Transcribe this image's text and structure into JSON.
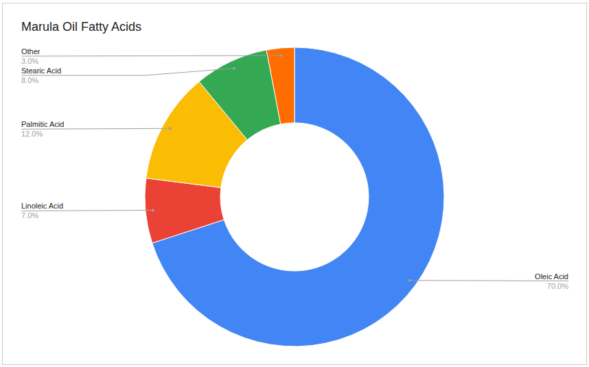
{
  "chart_data": {
    "type": "donut",
    "title": "Marula Oil Fatty Acids",
    "categories": [
      "Oleic Acid",
      "Linoleic Acid",
      "Palmitic Acid",
      "Stearic Acid",
      "Other"
    ],
    "values": [
      70,
      7,
      12,
      8,
      3
    ],
    "value_labels": [
      "70.0%",
      "7.0%",
      "12.0%",
      "8.0%",
      "3.0%"
    ],
    "colors": [
      "#4285f4",
      "#ea4335",
      "#fbbc04",
      "#34a853",
      "#ff6d01"
    ],
    "data_labels": true
  }
}
